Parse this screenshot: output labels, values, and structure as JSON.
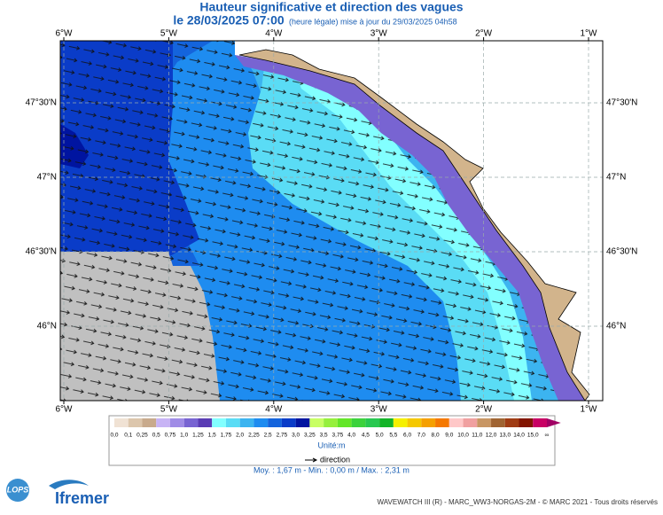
{
  "header": {
    "title": "Hauteur significative et direction des vagues",
    "date": "le 28/03/2025 07:00",
    "date_note": "(heure légale) mise à jour du 29/03/2025 04h58"
  },
  "map": {
    "longitude_labels": [
      "6°W",
      "5°W",
      "4°W",
      "3°W",
      "2°W",
      "1°W"
    ],
    "latitude_labels": [
      "47°30'N",
      "47°N",
      "46°30'N",
      "46°N"
    ]
  },
  "legend": {
    "labels": [
      "0,0",
      "0,1",
      "0,25",
      "0,5",
      "0,75",
      "1,0",
      "1,25",
      "1,5",
      "1,75",
      "2,0",
      "2,25",
      "2,5",
      "2,75",
      "3,0",
      "3,25",
      "3,5",
      "3,75",
      "4,0",
      "4,5",
      "5,0",
      "5,5",
      "6,0",
      "7,0",
      "8,0",
      "9,0",
      "10,0",
      "11,0",
      "12,0",
      "13,0",
      "14,0",
      "15,0",
      "∞"
    ],
    "colors": [
      "#f0e2d4",
      "#dcc6ac",
      "#c8aa8c",
      "#c8b4f5",
      "#a08ce6",
      "#7864d2",
      "#5a3cb4",
      "#82ffff",
      "#5adcf5",
      "#3cb4f0",
      "#1e8cf0",
      "#1464dc",
      "#0a3cc8",
      "#0014a0",
      "#c8ff64",
      "#96f03c",
      "#64e628",
      "#3cd23c",
      "#28c850",
      "#14b428",
      "#f5f000",
      "#f5c800",
      "#f5a000",
      "#f57800",
      "#ffc8c8",
      "#f0a0a0",
      "#c89664",
      "#a06432",
      "#a03c14",
      "#821400",
      "#c80064",
      "#a00064"
    ],
    "unit": "Unité:m",
    "direction": "direction"
  },
  "stats": "Moy. : 1,67 m   -   Min. : 0,00 m / Max. : 2,31 m",
  "logos": {
    "lops": "LOPS",
    "ifremer": "Ifremer"
  },
  "footer": "WAVEWATCH III (R) - MARC_WW3-NORGAS-2M - © MARC 2021 - Tous droits réservés"
}
